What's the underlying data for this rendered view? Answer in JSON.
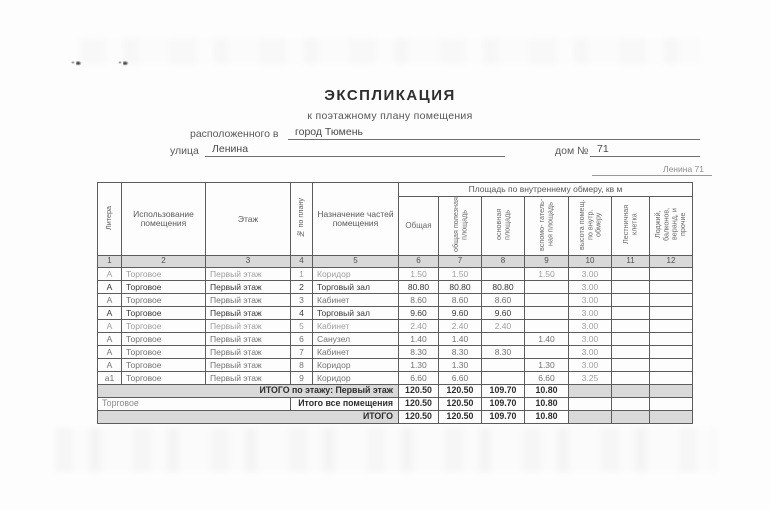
{
  "document": {
    "title": "ЭКСПЛИКАЦИЯ",
    "subtitle": "к поэтажному плану помещения",
    "located_label": "расположенного в",
    "city": "город Тюмень",
    "street_label": "улица",
    "street": "Ленина",
    "house_label": "дом №",
    "house_number": "71",
    "corner_note": "Ленина 71"
  },
  "table": {
    "area_group_header": "Площадь по внутреннему обмеру, кв м",
    "columns": [
      {
        "num": "1",
        "label": "Литера"
      },
      {
        "num": "2",
        "label": "Использование помещения"
      },
      {
        "num": "3",
        "label": "Этаж"
      },
      {
        "num": "4",
        "label": "№ по плану"
      },
      {
        "num": "5",
        "label": "Назначение частей помещения"
      },
      {
        "num": "6",
        "label": "Общая"
      },
      {
        "num": "7",
        "label": "общая полезная площадь"
      },
      {
        "num": "8",
        "label": "основная площадь"
      },
      {
        "num": "9",
        "label": "вспомо- гатель- ная площадь"
      },
      {
        "num": "10",
        "label": "высота помещ. по внутр. обмеру"
      },
      {
        "num": "11",
        "label": "Лестничная клетка"
      },
      {
        "num": "12",
        "label": "Лоджий, балконов, веранд, и прочие"
      }
    ],
    "rows": [
      [
        "А",
        "Торговое",
        "Первый этаж",
        "1",
        "Коридор",
        "1.50",
        "1.50",
        "",
        "1.50",
        "3.00",
        "",
        ""
      ],
      [
        "А",
        "Торговое",
        "Первый этаж",
        "2",
        "Торговый зал",
        "80.80",
        "80.80",
        "80.80",
        "",
        "3.00",
        "",
        ""
      ],
      [
        "А",
        "Торговое",
        "Первый этаж",
        "3",
        "Кабинет",
        "8.60",
        "8.60",
        "8.60",
        "",
        "3.00",
        "",
        ""
      ],
      [
        "А",
        "Торговое",
        "Первый этаж",
        "4",
        "Торговый зал",
        "9.60",
        "9.60",
        "9.60",
        "",
        "3.00",
        "",
        ""
      ],
      [
        "А",
        "Торговое",
        "Первый этаж",
        "5",
        "Кабинет",
        "2.40",
        "2.40",
        "2.40",
        "",
        "3.00",
        "",
        ""
      ],
      [
        "А",
        "Торговое",
        "Первый этаж",
        "6",
        "Санузел",
        "1.40",
        "1.40",
        "",
        "1.40",
        "3.00",
        "",
        ""
      ],
      [
        "А",
        "Торговое",
        "Первый этаж",
        "7",
        "Кабинет",
        "8.30",
        "8.30",
        "8.30",
        "",
        "3.00",
        "",
        ""
      ],
      [
        "А",
        "Торговое",
        "Первый этаж",
        "8",
        "Коридор",
        "1.30",
        "1.30",
        "",
        "1.30",
        "3.00",
        "",
        ""
      ],
      [
        "а1",
        "Торговое",
        "Первый этаж",
        "9",
        "Коридор",
        "6.60",
        "6.60",
        "",
        "6.60",
        "3.25",
        "",
        ""
      ]
    ],
    "totals": [
      {
        "label": "ИТОГО по этажу: Первый этаж",
        "values": [
          "120.50",
          "120.50",
          "109.70",
          "10.80"
        ]
      },
      {
        "left": "Торговое",
        "label": "Итого все помещения",
        "values": [
          "120.50",
          "120.50",
          "109.70",
          "10.80"
        ]
      },
      {
        "label": "ИТОГО",
        "values": [
          "120.50",
          "120.50",
          "109.70",
          "10.80"
        ]
      }
    ],
    "colors": {
      "shaded_cell": "#d9d9d9",
      "border": "#5c5c5c",
      "text_dark": "#383838",
      "text_mid": "#737373",
      "text_faded": "#9e9e9e"
    }
  }
}
